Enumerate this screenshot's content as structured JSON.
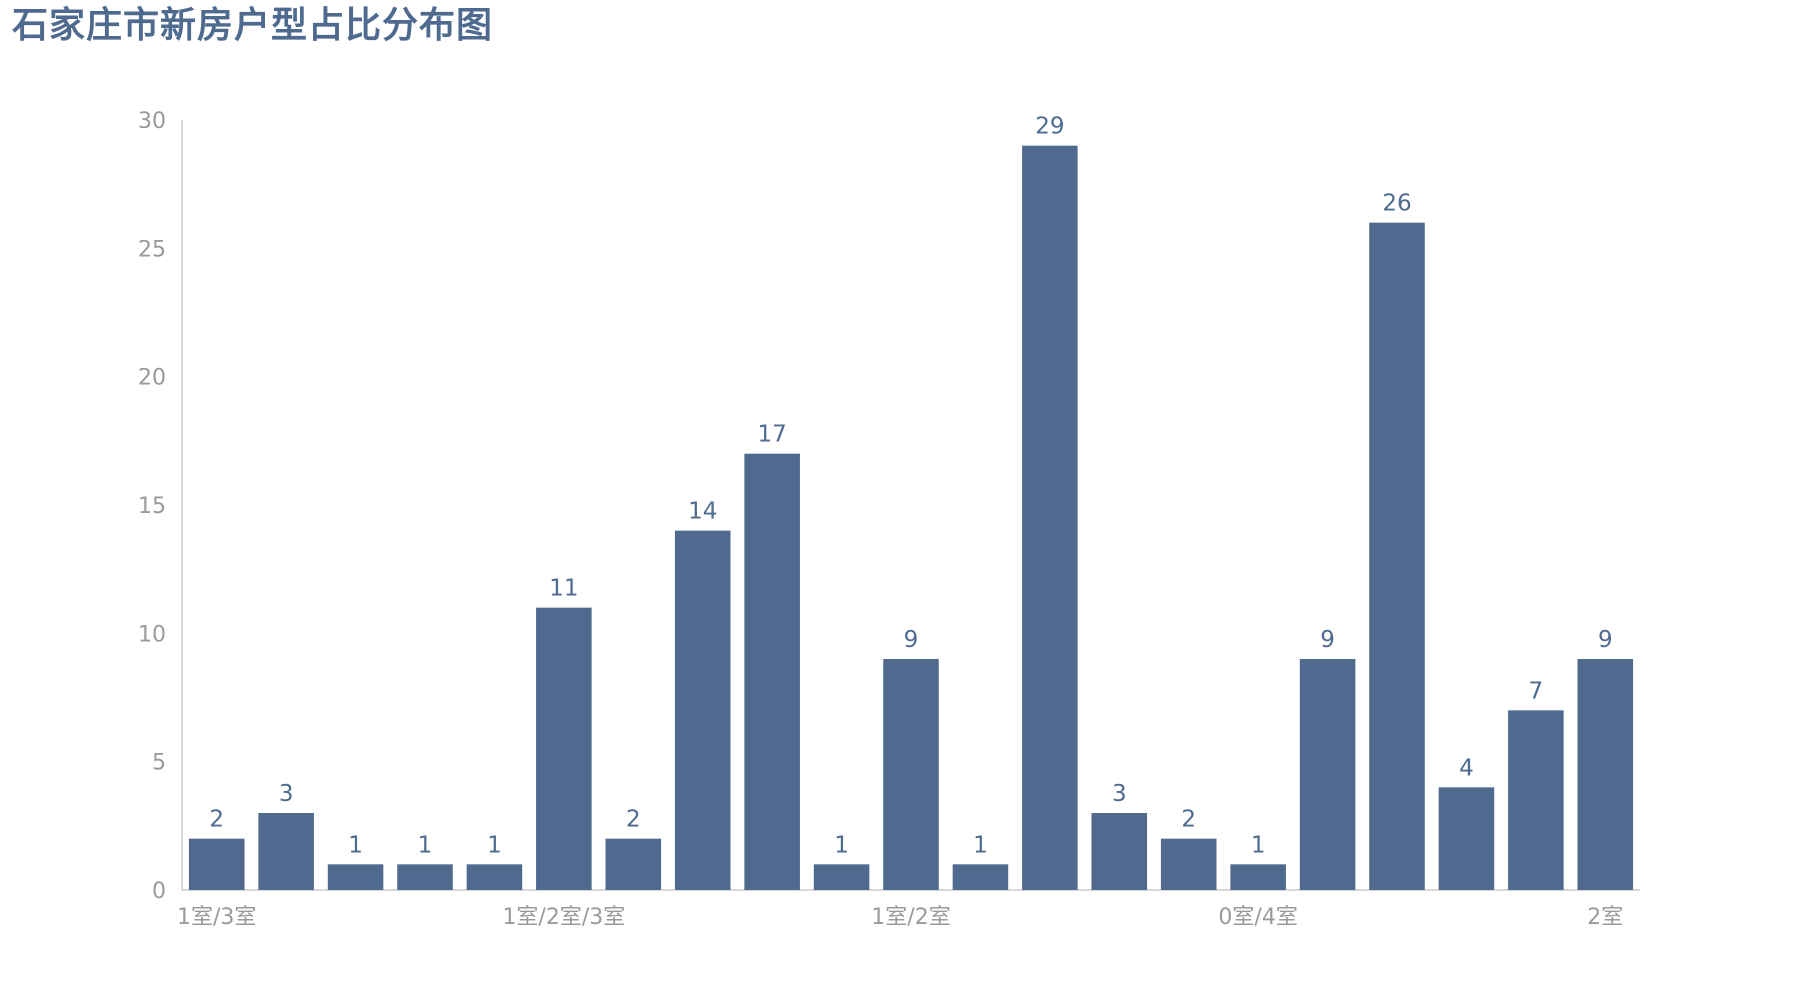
{
  "chart_data": {
    "type": "bar",
    "title": "石家庄市新房户型占比分布图",
    "xlabel": "",
    "ylabel": "",
    "ylim": [
      0,
      30
    ],
    "yticks": [
      0,
      5,
      10,
      15,
      20,
      25,
      30
    ],
    "grid": false,
    "bar_color": "#506a8f",
    "title_color": "#4f6a8f",
    "axis_label_color": "#9a9a9a",
    "categories": [
      "1室/3室",
      "",
      "",
      "",
      "",
      "1室/2室/3室",
      "",
      "",
      "",
      "",
      "1室/2室",
      "",
      "",
      "",
      "",
      "0室/4室",
      "",
      "",
      "",
      "",
      "2室"
    ],
    "values": [
      2,
      3,
      1,
      1,
      1,
      11,
      2,
      14,
      17,
      1,
      9,
      1,
      29,
      3,
      2,
      1,
      9,
      26,
      4,
      7,
      9
    ],
    "data_labels": [
      "2",
      "3",
      "1",
      "1",
      "1",
      "11",
      "2",
      "14",
      "17",
      "1",
      "9",
      "1",
      "29",
      "3",
      "2",
      "1",
      "9",
      "26",
      "4",
      "7",
      "9"
    ]
  }
}
